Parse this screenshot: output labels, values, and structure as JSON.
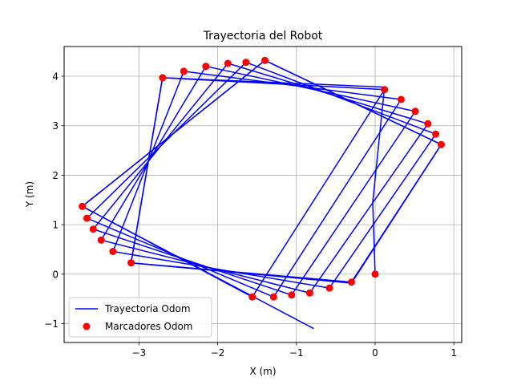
{
  "chart_data": {
    "type": "line",
    "title": "Trayectoria del Robot",
    "xlabel": "X (m)",
    "ylabel": "Y (m)",
    "xlim": [
      -3.95,
      1.1
    ],
    "ylim": [
      -1.38,
      4.6
    ],
    "xticks": [
      -3,
      -2,
      -1,
      0,
      1
    ],
    "xtick_labels": [
      "−3",
      "−2",
      "−1",
      "0",
      "1"
    ],
    "yticks": [
      -1,
      0,
      1,
      2,
      3,
      4
    ],
    "ytick_labels": [
      "−1",
      "0",
      "1",
      "2",
      "3",
      "4"
    ],
    "grid": true,
    "legend_position": "lower left",
    "series": [
      {
        "name": "Trayectoria Odom",
        "kind": "line",
        "color": "#0000ff",
        "x": [
          0,
          -0.03,
          0.12,
          -2.7,
          -3.1,
          -0.3,
          0.84,
          -1.4,
          -3.72,
          -0.78
        ],
        "y": [
          0,
          1.45,
          3.78,
          3.97,
          0.23,
          -0.18,
          2.62,
          4.32,
          1.37,
          -1.1
        ]
      },
      {
        "name": "Trayectoria Odom segments",
        "kind": "line-multi",
        "color": "#0000ff",
        "paths": [
          {
            "x": [
              0.12,
              -2.7,
              -3.1,
              -0.3,
              0.84
            ],
            "y": [
              3.73,
              3.97,
              0.23,
              -0.16,
              2.62
            ]
          },
          {
            "x": [
              0.33,
              -2.43,
              -3.33,
              -0.58,
              0.77
            ],
            "y": [
              3.53,
              4.1,
              0.46,
              -0.28,
              2.83
            ]
          },
          {
            "x": [
              0.51,
              -2.15,
              -3.48,
              -0.83,
              0.67
            ],
            "y": [
              3.29,
              4.2,
              0.69,
              -0.38,
              3.04
            ]
          },
          {
            "x": [
              0.67,
              -1.87,
              -3.58,
              -1.06,
              0.51
            ],
            "y": [
              3.04,
              4.26,
              0.91,
              -0.42,
              3.29
            ]
          },
          {
            "x": [
              0.77,
              -1.64,
              -3.66,
              -1.29,
              0.33
            ],
            "y": [
              2.83,
              4.28,
              1.13,
              -0.46,
              3.53
            ]
          },
          {
            "x": [
              0.84,
              -1.4,
              -3.72,
              -1.56,
              0.12
            ],
            "y": [
              2.62,
              4.32,
              1.37,
              -0.46,
              3.73
            ]
          }
        ]
      },
      {
        "name": "Marcadores Odom",
        "kind": "scatter",
        "color": "#ff0000",
        "x": [
          0,
          -0.3,
          -0.58,
          -0.83,
          -1.06,
          -1.29,
          -1.56,
          0.12,
          0.33,
          0.51,
          0.67,
          0.77,
          0.84,
          -2.7,
          -2.43,
          -2.15,
          -1.87,
          -1.64,
          -1.4,
          -3.1,
          -3.33,
          -3.48,
          -3.58,
          -3.66,
          -3.72
        ],
        "y": [
          0,
          -0.16,
          -0.28,
          -0.38,
          -0.42,
          -0.46,
          -0.46,
          3.73,
          3.53,
          3.29,
          3.04,
          2.83,
          2.62,
          3.97,
          4.1,
          4.2,
          4.26,
          4.28,
          4.32,
          0.23,
          0.46,
          0.69,
          0.91,
          1.13,
          1.37
        ]
      }
    ]
  }
}
